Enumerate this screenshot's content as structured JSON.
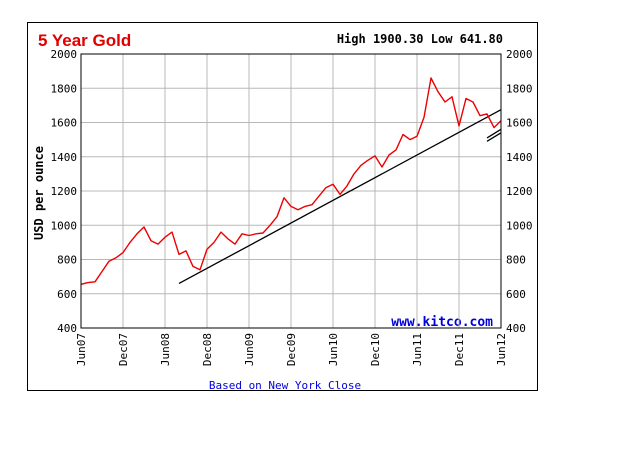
{
  "chart_data": {
    "type": "line",
    "title": "5 Year Gold",
    "high_low_label": "High 1900.30 Low 641.80",
    "ylabel": "USD per ounce",
    "xlabel": "Based on New York Close",
    "source_label": "www.kitco.com",
    "ylim": [
      400,
      2000
    ],
    "yticks": [
      400,
      600,
      800,
      1000,
      1200,
      1400,
      1600,
      1800,
      2000
    ],
    "xlim": [
      "2007-06",
      "2012-06"
    ],
    "xticks": [
      {
        "date": "2007-06",
        "label": "Jun07"
      },
      {
        "date": "2007-12",
        "label": "Dec07"
      },
      {
        "date": "2008-06",
        "label": "Jun08"
      },
      {
        "date": "2008-12",
        "label": "Dec08"
      },
      {
        "date": "2009-06",
        "label": "Jun09"
      },
      {
        "date": "2009-12",
        "label": "Dec09"
      },
      {
        "date": "2010-06",
        "label": "Jun10"
      },
      {
        "date": "2010-12",
        "label": "Dec10"
      },
      {
        "date": "2011-06",
        "label": "Jun11"
      },
      {
        "date": "2011-12",
        "label": "Dec11"
      },
      {
        "date": "2012-06",
        "label": "Jun12"
      }
    ],
    "grid": true,
    "series": [
      {
        "color": "#ee0000",
        "points": [
          [
            "2007-06",
            655
          ],
          [
            "2007-07",
            665
          ],
          [
            "2007-08",
            670
          ],
          [
            "2007-09",
            730
          ],
          [
            "2007-10",
            790
          ],
          [
            "2007-11",
            810
          ],
          [
            "2007-12",
            840
          ],
          [
            "2008-01",
            900
          ],
          [
            "2008-02",
            950
          ],
          [
            "2008-03",
            990
          ],
          [
            "2008-04",
            910
          ],
          [
            "2008-05",
            890
          ],
          [
            "2008-06",
            930
          ],
          [
            "2008-07",
            960
          ],
          [
            "2008-08",
            830
          ],
          [
            "2008-09",
            850
          ],
          [
            "2008-10",
            760
          ],
          [
            "2008-11",
            740
          ],
          [
            "2008-12",
            860
          ],
          [
            "2009-01",
            900
          ],
          [
            "2009-02",
            960
          ],
          [
            "2009-03",
            920
          ],
          [
            "2009-04",
            890
          ],
          [
            "2009-05",
            950
          ],
          [
            "2009-06",
            940
          ],
          [
            "2009-07",
            950
          ],
          [
            "2009-08",
            955
          ],
          [
            "2009-09",
            1000
          ],
          [
            "2009-10",
            1050
          ],
          [
            "2009-11",
            1160
          ],
          [
            "2009-12",
            1110
          ],
          [
            "2010-01",
            1090
          ],
          [
            "2010-02",
            1110
          ],
          [
            "2010-03",
            1120
          ],
          [
            "2010-04",
            1170
          ],
          [
            "2010-05",
            1220
          ],
          [
            "2010-06",
            1240
          ],
          [
            "2010-07",
            1180
          ],
          [
            "2010-08",
            1230
          ],
          [
            "2010-09",
            1300
          ],
          [
            "2010-10",
            1350
          ],
          [
            "2010-11",
            1380
          ],
          [
            "2010-12",
            1405
          ],
          [
            "2011-01",
            1340
          ],
          [
            "2011-02",
            1410
          ],
          [
            "2011-03",
            1440
          ],
          [
            "2011-04",
            1530
          ],
          [
            "2011-05",
            1500
          ],
          [
            "2011-06",
            1520
          ],
          [
            "2011-07",
            1630
          ],
          [
            "2011-08",
            1860
          ],
          [
            "2011-09",
            1780
          ],
          [
            "2011-10",
            1720
          ],
          [
            "2011-11",
            1750
          ],
          [
            "2011-12",
            1580
          ],
          [
            "2012-01",
            1740
          ],
          [
            "2012-02",
            1720
          ],
          [
            "2012-03",
            1640
          ],
          [
            "2012-04",
            1650
          ],
          [
            "2012-05",
            1570
          ],
          [
            "2012-06",
            1610
          ]
        ]
      }
    ],
    "trendlines": [
      {
        "color": "#000000",
        "points": [
          [
            "2008-08",
            660
          ],
          [
            "2012-06",
            1675
          ]
        ]
      },
      {
        "color": "#000000",
        "points": [
          [
            "2012-04",
            1490
          ],
          [
            "2012-06",
            1540
          ]
        ]
      },
      {
        "color": "#000000",
        "points": [
          [
            "2012-04",
            1510
          ],
          [
            "2012-06",
            1560
          ]
        ]
      }
    ]
  }
}
